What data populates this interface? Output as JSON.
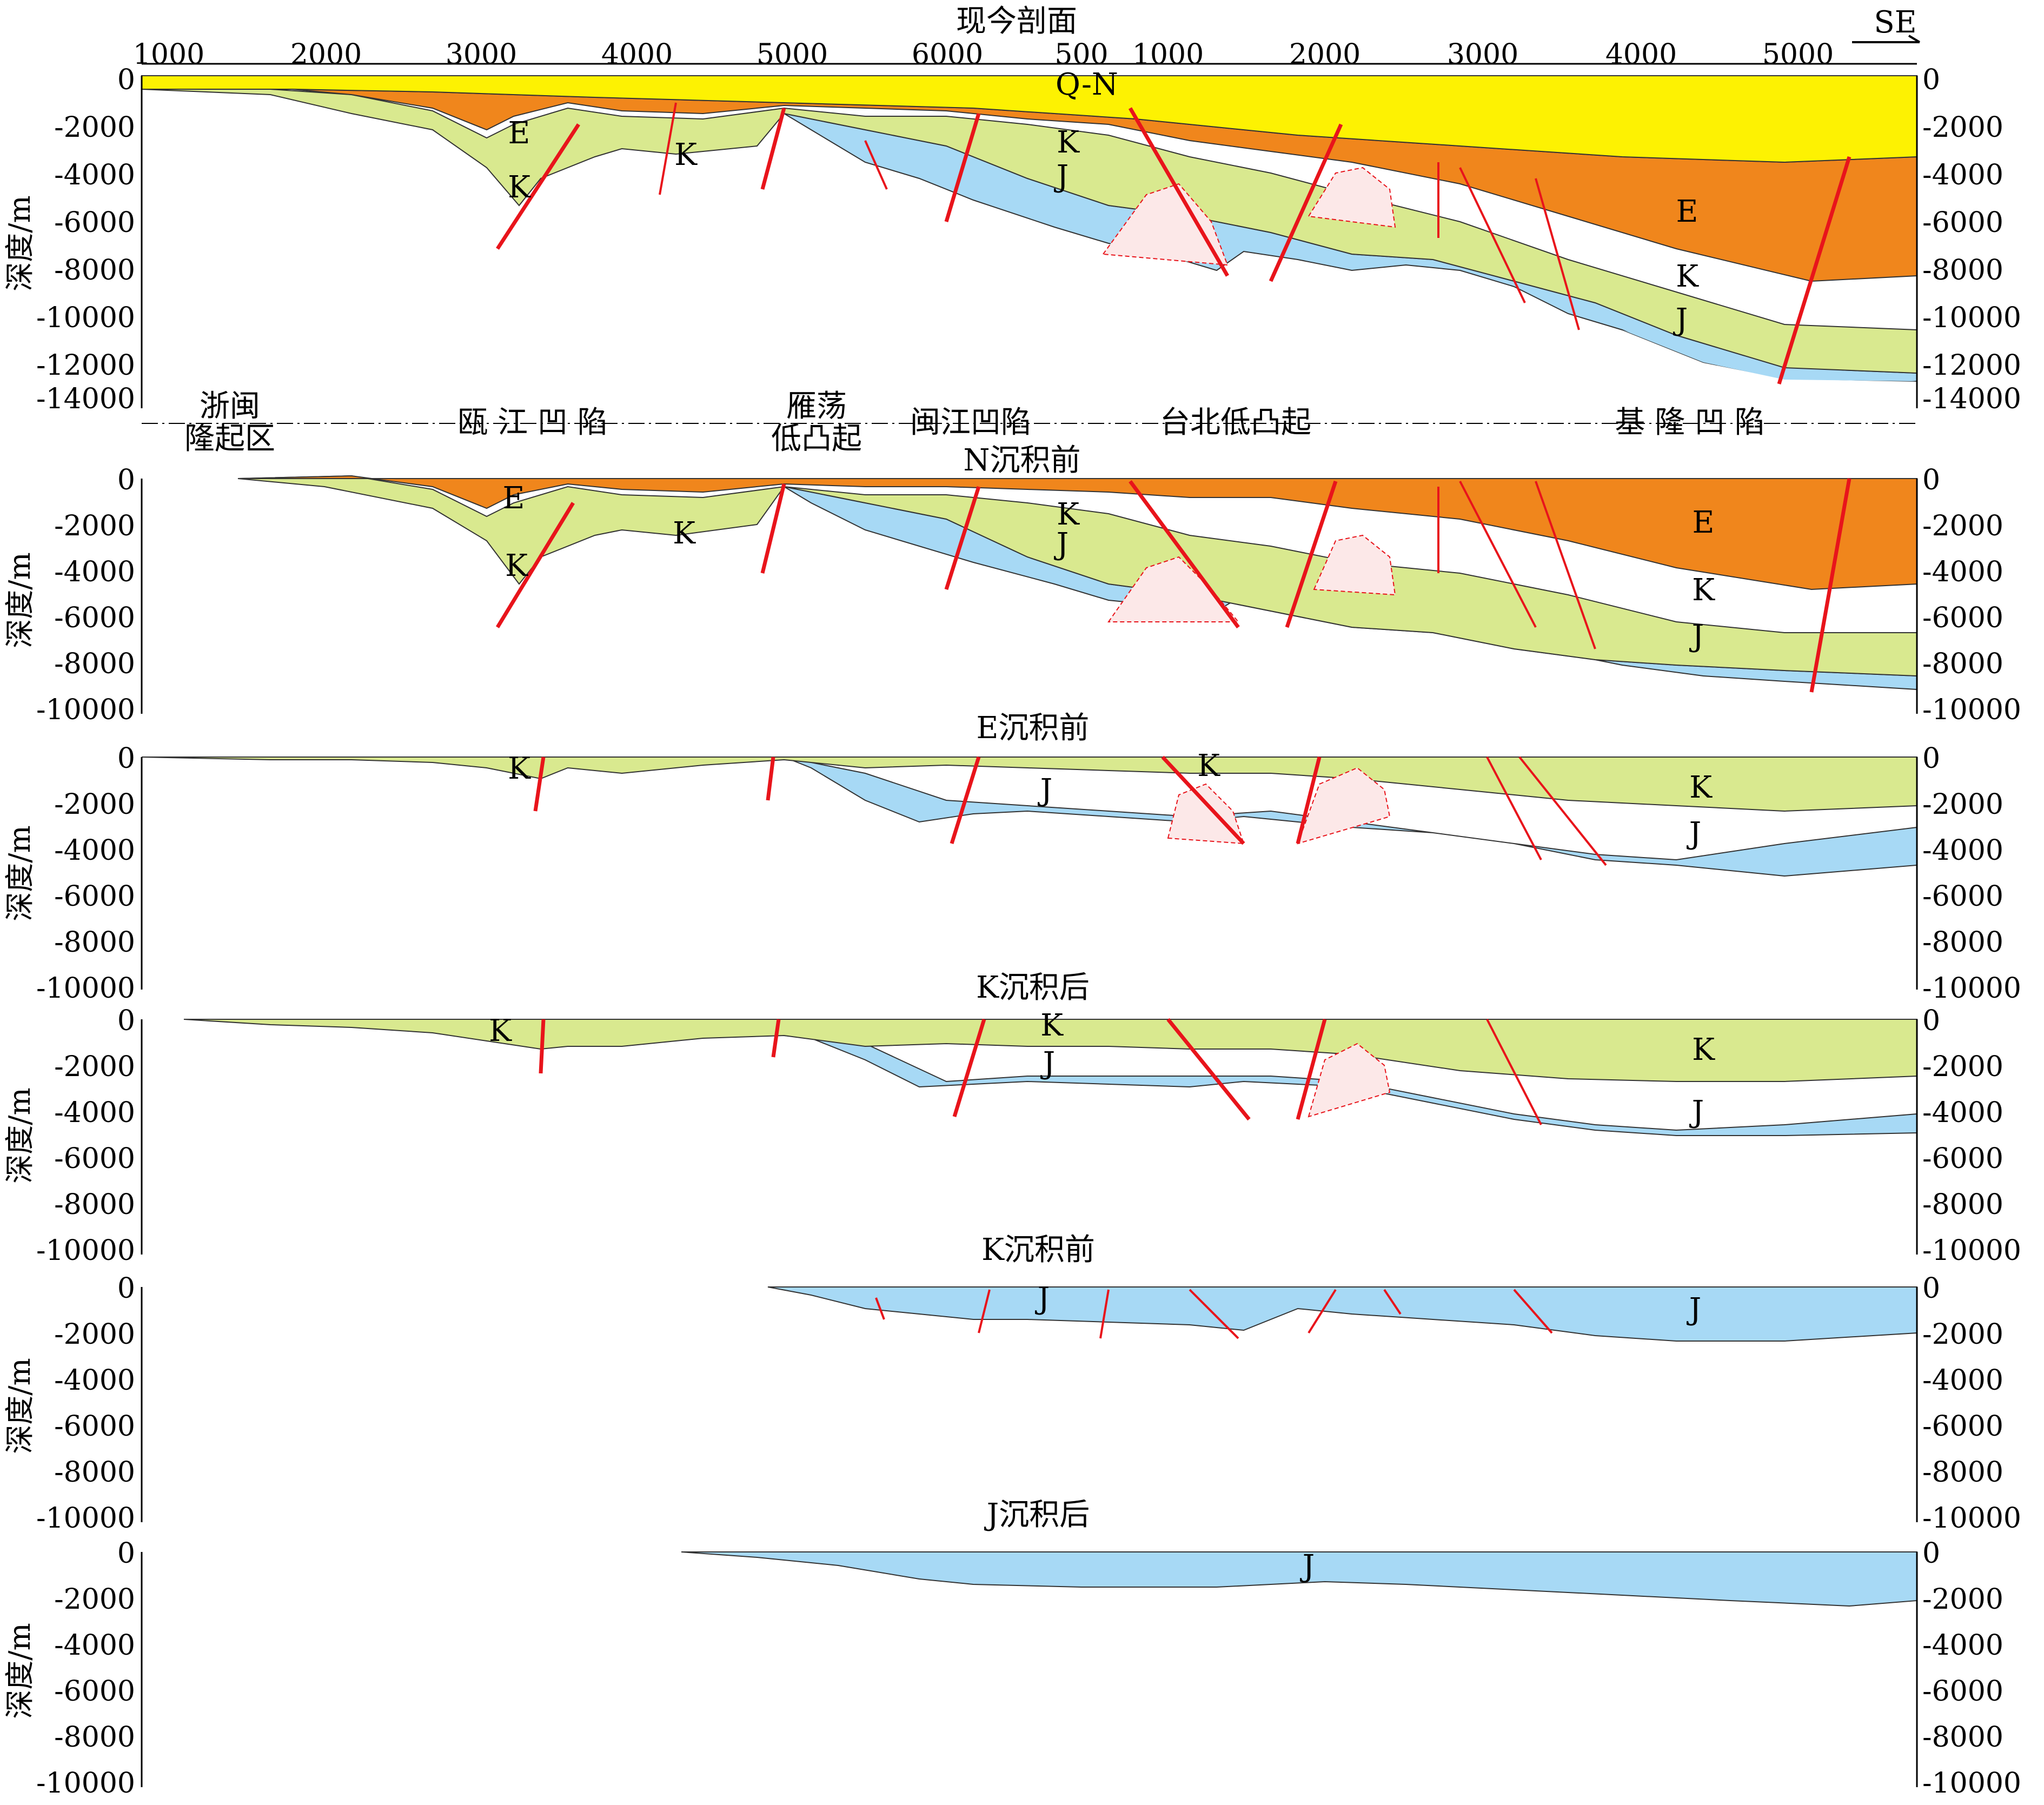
{
  "profile": {
    "title": "现今剖面",
    "direction_label": "SE",
    "distance_ticks_a": [
      "1000",
      "2000",
      "3000",
      "4000",
      "5000",
      "6000"
    ],
    "distance_ticks_b": [
      "500",
      "1000",
      "2000",
      "3000",
      "4000",
      "5000"
    ],
    "regions": [
      "浙闽隆起区",
      "瓯江凹陷",
      "雁荡低凸起",
      "闽江凹陷",
      "台北低凸起",
      "基隆凹陷"
    ],
    "region_lines": [
      [
        "浙闽",
        "隆起区"
      ],
      [
        "瓯 江 凹 陷"
      ],
      [
        "雁荡",
        "低凸起"
      ],
      [
        "闽江凹陷"
      ],
      [
        "台北低凸起"
      ],
      [
        "基 隆 凹 陷"
      ]
    ]
  },
  "depth_axis_label": "深度/m",
  "colors": {
    "Q-N": "#fdf202",
    "E": "#f0861c",
    "K": "#d9e98f",
    "J": "#a7d9f5",
    "fault": "#e8141b",
    "volcanic": "#e8141b"
  },
  "panels": [
    {
      "key": "present",
      "title": "现今剖面",
      "depth_ticks": [
        "0",
        "-2000",
        "-4000",
        "-6000",
        "-8000",
        "-10000",
        "-12000",
        "-14000"
      ],
      "right_ticks": [
        "0",
        "-2000",
        "-4000",
        "-6000",
        "-8000",
        "-10000",
        "-12000",
        "-14000"
      ],
      "units": [
        "Q-N",
        "E",
        "K",
        "J"
      ],
      "labels": [
        {
          "text": "Q-N"
        },
        {
          "text": "E"
        },
        {
          "text": "K"
        },
        {
          "text": "K"
        },
        {
          "text": "K"
        },
        {
          "text": "J"
        },
        {
          "text": "E"
        },
        {
          "text": "K"
        },
        {
          "text": "J"
        }
      ]
    },
    {
      "key": "pre_N",
      "title": "N沉积前",
      "depth_ticks": [
        "0",
        "-2000",
        "-4000",
        "-6000",
        "-8000",
        "-10000"
      ],
      "right_ticks": [
        "0",
        "-2000",
        "-4000",
        "-6000",
        "-8000",
        "-10000"
      ],
      "units": [
        "E",
        "K",
        "J"
      ],
      "labels": [
        {
          "text": "E"
        },
        {
          "text": "K"
        },
        {
          "text": "K"
        },
        {
          "text": "K"
        },
        {
          "text": "J"
        },
        {
          "text": "E"
        },
        {
          "text": "K"
        },
        {
          "text": "J"
        }
      ]
    },
    {
      "key": "pre_E",
      "title": "E沉积前",
      "depth_ticks": [
        "0",
        "-2000",
        "-4000",
        "-6000",
        "-8000",
        "-10000"
      ],
      "right_ticks": [
        "0",
        "-2000",
        "-4000",
        "-6000",
        "-8000",
        "-10000"
      ],
      "units": [
        "K",
        "J"
      ],
      "labels": [
        {
          "text": "K"
        },
        {
          "text": "J"
        },
        {
          "text": "K"
        },
        {
          "text": "K"
        },
        {
          "text": "J"
        }
      ]
    },
    {
      "key": "post_K",
      "title": "K沉积后",
      "depth_ticks": [
        "0",
        "-2000",
        "-4000",
        "-6000",
        "-8000",
        "-10000"
      ],
      "right_ticks": [
        "0",
        "-2000",
        "-4000",
        "-6000",
        "-8000",
        "-10000"
      ],
      "units": [
        "K",
        "J"
      ],
      "labels": [
        {
          "text": "K"
        },
        {
          "text": "K"
        },
        {
          "text": "J"
        },
        {
          "text": "K"
        },
        {
          "text": "J"
        }
      ]
    },
    {
      "key": "pre_K",
      "title": "K沉积前",
      "depth_ticks": [
        "0",
        "-2000",
        "-4000",
        "-6000",
        "-8000",
        "-10000"
      ],
      "right_ticks": [
        "0",
        "-2000",
        "-4000",
        "-6000",
        "-8000",
        "-10000"
      ],
      "units": [
        "J"
      ],
      "labels": [
        {
          "text": "J"
        },
        {
          "text": "J"
        }
      ]
    },
    {
      "key": "post_J",
      "title": "J沉积后",
      "depth_ticks": [
        "0",
        "-2000",
        "-4000",
        "-6000",
        "-8000",
        "-10000"
      ],
      "right_ticks": [
        "0",
        "-2000",
        "-4000",
        "-6000",
        "-8000",
        "-10000"
      ],
      "units": [
        "J"
      ],
      "labels": [
        {
          "text": "J"
        }
      ]
    }
  ]
}
